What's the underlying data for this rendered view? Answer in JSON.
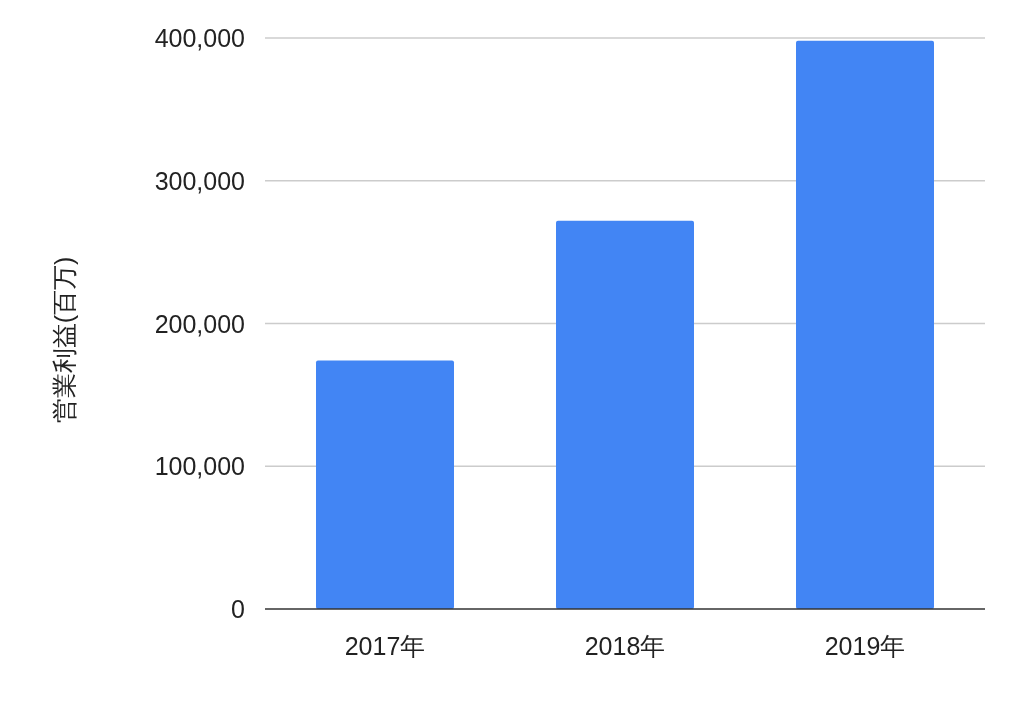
{
  "chart_data": {
    "type": "bar",
    "ylabel": "営業利益(百万)",
    "categories": [
      "2017年",
      "2018年",
      "2019年"
    ],
    "values": [
      174000,
      272000,
      398000
    ],
    "color": "#4285f4",
    "ylim": [
      0,
      400000
    ],
    "yticks": [
      0,
      {
        "value": 100000,
        "label": "100,000"
      },
      {
        "value": 200000,
        "label": "200,000"
      },
      {
        "value": 300000,
        "label": "300,000"
      },
      {
        "value": 400000,
        "label": "400,000"
      }
    ],
    "grid": "y"
  }
}
